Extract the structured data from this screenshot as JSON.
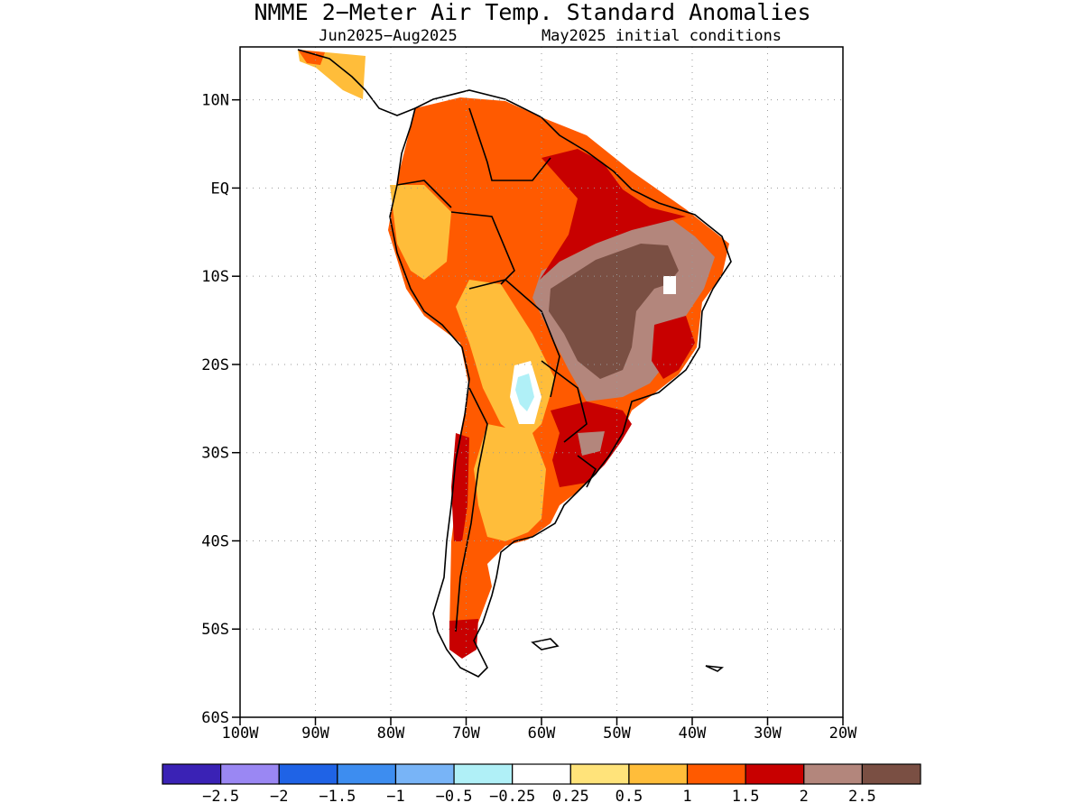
{
  "title": "NMME 2−Meter Air Temp. Standard Anomalies",
  "subtitle_left": "Jun2025−Aug2025",
  "subtitle_right": "May2025 initial conditions",
  "map": {
    "lon_range": [
      -100,
      -20
    ],
    "lat_range": [
      -60,
      16
    ],
    "lat_ticks": [
      {
        "value": 10,
        "label": "10N"
      },
      {
        "value": 0,
        "label": "EQ"
      },
      {
        "value": -10,
        "label": "10S"
      },
      {
        "value": -20,
        "label": "20S"
      },
      {
        "value": -30,
        "label": "30S"
      },
      {
        "value": -40,
        "label": "40S"
      },
      {
        "value": -50,
        "label": "50S"
      },
      {
        "value": -60,
        "label": "60S"
      }
    ],
    "lon_ticks": [
      {
        "value": -100,
        "label": "100W"
      },
      {
        "value": -90,
        "label": "90W"
      },
      {
        "value": -80,
        "label": "80W"
      },
      {
        "value": -70,
        "label": "70W"
      },
      {
        "value": -60,
        "label": "60W"
      },
      {
        "value": -50,
        "label": "50W"
      },
      {
        "value": -40,
        "label": "40W"
      },
      {
        "value": -30,
        "label": "30W"
      },
      {
        "value": -20,
        "label": "20W"
      }
    ],
    "grid": true
  },
  "colorbar": {
    "colors": [
      "#3a22b5",
      "#9a87f3",
      "#1f63e6",
      "#3d8df0",
      "#78b4f7",
      "#b0f0f7",
      "#ffffff",
      "#ffe37a",
      "#ffbd3a",
      "#ff5a00",
      "#c80000",
      "#b3867c",
      "#7a4f43"
    ],
    "labels": [
      "−2.5",
      "−2",
      "−1.5",
      "−1",
      "−0.5",
      "−0.25",
      "0.25",
      "0.5",
      "1",
      "1.5",
      "2",
      "2.5"
    ]
  },
  "regions": [
    {
      "name": "central-america-strip",
      "level": "0.5",
      "color": "#ffbd3a"
    },
    {
      "name": "northern-continent",
      "level": "1",
      "color": "#ff5a00"
    },
    {
      "name": "west-andes-peru",
      "level": "0.5",
      "color": "#ffbd3a"
    },
    {
      "name": "chile-argentina-band",
      "level": "0.5",
      "color": "#ffbd3a"
    },
    {
      "name": "argentina-east",
      "level": "1",
      "color": "#ff5a00"
    },
    {
      "name": "eastern-brazil-rim",
      "level": "1.5",
      "color": "#c80000"
    },
    {
      "name": "central-brazil-outer",
      "level": "2",
      "color": "#b3867c"
    },
    {
      "name": "central-brazil-core",
      "level": "2.5",
      "color": "#7a4f43"
    },
    {
      "name": "southern-brazil-uruguay",
      "level": "1.5",
      "color": "#c80000"
    },
    {
      "name": "patagonia-south",
      "level": "1.5",
      "color": "#c80000"
    },
    {
      "name": "altiplano-near-zero",
      "level": "0.25",
      "color": "#ffffff"
    },
    {
      "name": "altiplano-cool-spot",
      "level": "-0.25",
      "color": "#b0f0f7"
    }
  ]
}
